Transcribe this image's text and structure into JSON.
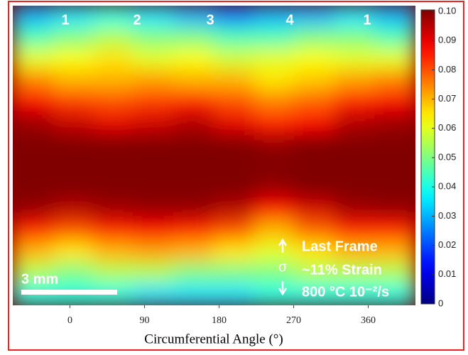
{
  "chart_data": {
    "type": "heatmap",
    "colormap": "jet",
    "sections": [
      "1",
      "2",
      "3",
      "4",
      "1"
    ],
    "z": [
      [
        0.03,
        0.035,
        0.04,
        0.035,
        0.03,
        0.025,
        0.03,
        0.03,
        0.035,
        0.03
      ],
      [
        0.045,
        0.05,
        0.055,
        0.05,
        0.05,
        0.045,
        0.045,
        0.05,
        0.05,
        0.045
      ],
      [
        0.06,
        0.062,
        0.065,
        0.06,
        0.062,
        0.058,
        0.06,
        0.062,
        0.06,
        0.06
      ],
      [
        0.075,
        0.07,
        0.07,
        0.072,
        0.07,
        0.07,
        0.065,
        0.068,
        0.072,
        0.075
      ],
      [
        0.088,
        0.082,
        0.08,
        0.082,
        0.085,
        0.08,
        0.075,
        0.078,
        0.085,
        0.088
      ],
      [
        0.097,
        0.093,
        0.09,
        0.092,
        0.095,
        0.09,
        0.085,
        0.088,
        0.095,
        0.097
      ],
      [
        0.1,
        0.1,
        0.1,
        0.1,
        0.1,
        0.1,
        0.098,
        0.1,
        0.1,
        0.1
      ],
      [
        0.1,
        0.1,
        0.1,
        0.1,
        0.1,
        0.1,
        0.1,
        0.1,
        0.1,
        0.1
      ],
      [
        0.1,
        0.1,
        0.1,
        0.1,
        0.1,
        0.1,
        0.098,
        0.1,
        0.1,
        0.1
      ],
      [
        0.098,
        0.095,
        0.097,
        0.098,
        0.098,
        0.095,
        0.088,
        0.092,
        0.097,
        0.098
      ],
      [
        0.085,
        0.08,
        0.085,
        0.088,
        0.085,
        0.08,
        0.07,
        0.078,
        0.085,
        0.085
      ],
      [
        0.07,
        0.065,
        0.07,
        0.072,
        0.07,
        0.065,
        0.06,
        0.065,
        0.07,
        0.07
      ],
      [
        0.055,
        0.05,
        0.055,
        0.055,
        0.05,
        0.05,
        0.05,
        0.055,
        0.055,
        0.055
      ],
      [
        0.04,
        0.04,
        0.04,
        0.035,
        0.035,
        0.035,
        0.04,
        0.04,
        0.04,
        0.04
      ]
    ],
    "zlim": [
      0,
      0.1
    ],
    "zticks": [
      {
        "value": 0.1,
        "label": "0.10"
      },
      0.09,
      0.08,
      0.07,
      0.06,
      0.05,
      0.04,
      0.03,
      0.02,
      0.01,
      0
    ],
    "x_label": "Circumferential Angle (°)",
    "xlim": [
      -69,
      417
    ],
    "xticks": [
      0,
      90,
      180,
      270,
      360
    ],
    "scale_bar": "3 mm",
    "stress_symbol": "σ",
    "annotations": [
      "Last Frame",
      "~11% Strain",
      "800 °C 10⁻²/s"
    ]
  }
}
